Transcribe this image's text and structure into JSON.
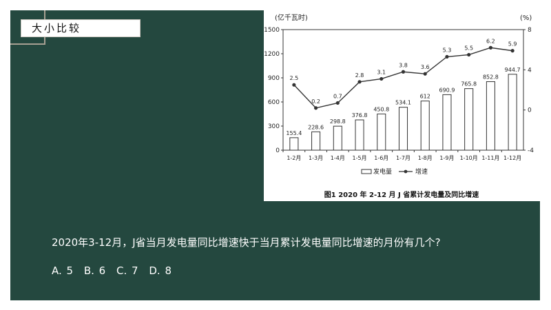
{
  "section_title": "大小比较",
  "question": "2020年3-12月，J省当月发电量同比增速快于当月累计发电量同比增速的月份有几个?",
  "options": [
    "A. 5",
    "B. 6",
    "C. 7",
    "D. 8"
  ],
  "colors": {
    "panel": "#24483f",
    "bar_fill": "#ffffff",
    "stroke": "#333333"
  },
  "chart_data": {
    "type": "bar",
    "title": "图1    2020 年 2-12 月 J 省累计发电量及同比增速",
    "left_axis_unit": "(亿千瓦时)",
    "right_axis_unit": "(%)",
    "categories": [
      "1-2月",
      "1-3月",
      "1-4月",
      "1-5月",
      "1-6月",
      "1-7月",
      "1-8月",
      "1-9月",
      "1-10月",
      "1-11月",
      "1-12月"
    ],
    "left_ticks": [
      0,
      300,
      600,
      900,
      1200,
      1500
    ],
    "right_ticks": [
      -4,
      0,
      4,
      8
    ],
    "ylim_left": [
      0,
      1500
    ],
    "ylim_right": [
      -4,
      8
    ],
    "series": [
      {
        "name": "发电量",
        "type": "bar",
        "axis": "left",
        "values": [
          155.4,
          228.6,
          298.8,
          376.8,
          450.8,
          534.1,
          612,
          690.9,
          765.8,
          852.8,
          944.7
        ],
        "labels": [
          "155.4",
          "228.6",
          "298.8",
          "376.8",
          "450.8",
          "534.1",
          "612",
          "690.9",
          "765.8",
          "852.8",
          "944.7"
        ]
      },
      {
        "name": "增速",
        "type": "line",
        "axis": "right",
        "values": [
          2.5,
          0.2,
          0.7,
          2.8,
          3.1,
          3.8,
          3.6,
          5.3,
          5.5,
          6.2,
          5.9
        ],
        "labels": [
          "2.5",
          "0.2",
          "0.7",
          "2.8",
          "3.1",
          "3.8",
          "3.6",
          "5.3",
          "5.5",
          "6.2",
          "5.9"
        ]
      }
    ],
    "legend_position": "bottom"
  }
}
